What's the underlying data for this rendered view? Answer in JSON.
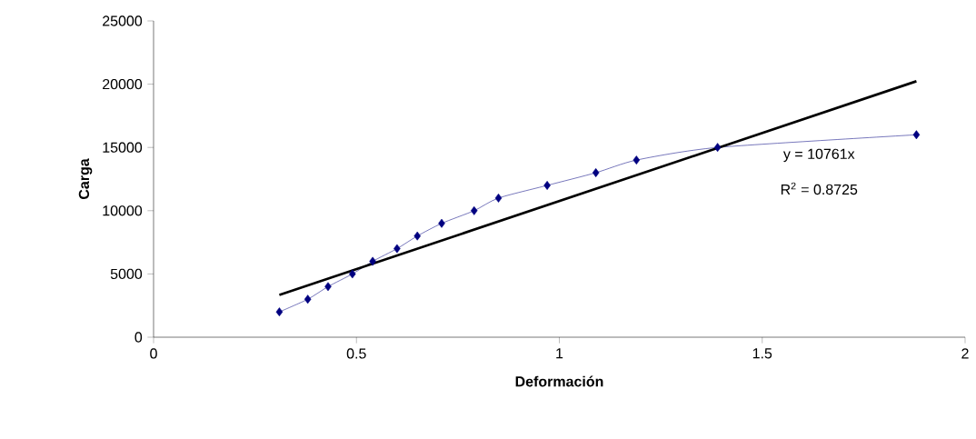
{
  "chart_data": {
    "type": "line",
    "xlabel": "Deformación",
    "ylabel": "Carga",
    "xlim": [
      0,
      2
    ],
    "xticks": [
      0,
      0.5,
      1,
      1.5,
      2
    ],
    "ylim": [
      0,
      25000
    ],
    "yticks": [
      0,
      5000,
      10000,
      15000,
      20000,
      25000
    ],
    "series": [
      {
        "color": "#000080",
        "marker": "diamond",
        "x": [
          0.31,
          0.38,
          0.43,
          0.49,
          0.54,
          0.6,
          0.65,
          0.71,
          0.79,
          0.85,
          0.97,
          1.09,
          1.19,
          1.39,
          1.88
        ],
        "values": [
          2000,
          3000,
          4000,
          5000,
          6000,
          7000,
          8000,
          9000,
          10000,
          11000,
          12000,
          13000,
          14000,
          15000,
          16000
        ]
      },
      {
        "color": "#000000",
        "marker": "none",
        "x": [
          0.31,
          1.88
        ],
        "values": [
          3336,
          20231
        ]
      }
    ],
    "annotations": [
      "y = 10761x",
      "R$^{2}$ = 0.8725"
    ]
  }
}
